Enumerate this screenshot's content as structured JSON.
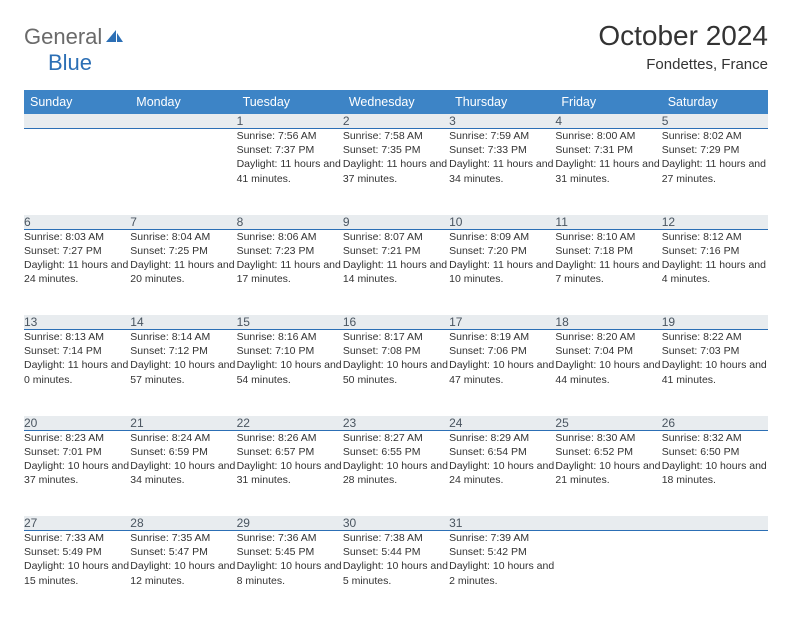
{
  "logo": {
    "text1": "General",
    "text2": "Blue"
  },
  "title": "October 2024",
  "location": "Fondettes, France",
  "colors": {
    "header_bg": "#3d84c6",
    "accent": "#2c6fb5",
    "daynum_bg": "#e8ecef",
    "text": "#333333"
  },
  "dayHeaders": [
    "Sunday",
    "Monday",
    "Tuesday",
    "Wednesday",
    "Thursday",
    "Friday",
    "Saturday"
  ],
  "weeks": [
    [
      null,
      null,
      {
        "n": "1",
        "sr": "7:56 AM",
        "ss": "7:37 PM",
        "dl": "11 hours and 41 minutes."
      },
      {
        "n": "2",
        "sr": "7:58 AM",
        "ss": "7:35 PM",
        "dl": "11 hours and 37 minutes."
      },
      {
        "n": "3",
        "sr": "7:59 AM",
        "ss": "7:33 PM",
        "dl": "11 hours and 34 minutes."
      },
      {
        "n": "4",
        "sr": "8:00 AM",
        "ss": "7:31 PM",
        "dl": "11 hours and 31 minutes."
      },
      {
        "n": "5",
        "sr": "8:02 AM",
        "ss": "7:29 PM",
        "dl": "11 hours and 27 minutes."
      }
    ],
    [
      {
        "n": "6",
        "sr": "8:03 AM",
        "ss": "7:27 PM",
        "dl": "11 hours and 24 minutes."
      },
      {
        "n": "7",
        "sr": "8:04 AM",
        "ss": "7:25 PM",
        "dl": "11 hours and 20 minutes."
      },
      {
        "n": "8",
        "sr": "8:06 AM",
        "ss": "7:23 PM",
        "dl": "11 hours and 17 minutes."
      },
      {
        "n": "9",
        "sr": "8:07 AM",
        "ss": "7:21 PM",
        "dl": "11 hours and 14 minutes."
      },
      {
        "n": "10",
        "sr": "8:09 AM",
        "ss": "7:20 PM",
        "dl": "11 hours and 10 minutes."
      },
      {
        "n": "11",
        "sr": "8:10 AM",
        "ss": "7:18 PM",
        "dl": "11 hours and 7 minutes."
      },
      {
        "n": "12",
        "sr": "8:12 AM",
        "ss": "7:16 PM",
        "dl": "11 hours and 4 minutes."
      }
    ],
    [
      {
        "n": "13",
        "sr": "8:13 AM",
        "ss": "7:14 PM",
        "dl": "11 hours and 0 minutes."
      },
      {
        "n": "14",
        "sr": "8:14 AM",
        "ss": "7:12 PM",
        "dl": "10 hours and 57 minutes."
      },
      {
        "n": "15",
        "sr": "8:16 AM",
        "ss": "7:10 PM",
        "dl": "10 hours and 54 minutes."
      },
      {
        "n": "16",
        "sr": "8:17 AM",
        "ss": "7:08 PM",
        "dl": "10 hours and 50 minutes."
      },
      {
        "n": "17",
        "sr": "8:19 AM",
        "ss": "7:06 PM",
        "dl": "10 hours and 47 minutes."
      },
      {
        "n": "18",
        "sr": "8:20 AM",
        "ss": "7:04 PM",
        "dl": "10 hours and 44 minutes."
      },
      {
        "n": "19",
        "sr": "8:22 AM",
        "ss": "7:03 PM",
        "dl": "10 hours and 41 minutes."
      }
    ],
    [
      {
        "n": "20",
        "sr": "8:23 AM",
        "ss": "7:01 PM",
        "dl": "10 hours and 37 minutes."
      },
      {
        "n": "21",
        "sr": "8:24 AM",
        "ss": "6:59 PM",
        "dl": "10 hours and 34 minutes."
      },
      {
        "n": "22",
        "sr": "8:26 AM",
        "ss": "6:57 PM",
        "dl": "10 hours and 31 minutes."
      },
      {
        "n": "23",
        "sr": "8:27 AM",
        "ss": "6:55 PM",
        "dl": "10 hours and 28 minutes."
      },
      {
        "n": "24",
        "sr": "8:29 AM",
        "ss": "6:54 PM",
        "dl": "10 hours and 24 minutes."
      },
      {
        "n": "25",
        "sr": "8:30 AM",
        "ss": "6:52 PM",
        "dl": "10 hours and 21 minutes."
      },
      {
        "n": "26",
        "sr": "8:32 AM",
        "ss": "6:50 PM",
        "dl": "10 hours and 18 minutes."
      }
    ],
    [
      {
        "n": "27",
        "sr": "7:33 AM",
        "ss": "5:49 PM",
        "dl": "10 hours and 15 minutes."
      },
      {
        "n": "28",
        "sr": "7:35 AM",
        "ss": "5:47 PM",
        "dl": "10 hours and 12 minutes."
      },
      {
        "n": "29",
        "sr": "7:36 AM",
        "ss": "5:45 PM",
        "dl": "10 hours and 8 minutes."
      },
      {
        "n": "30",
        "sr": "7:38 AM",
        "ss": "5:44 PM",
        "dl": "10 hours and 5 minutes."
      },
      {
        "n": "31",
        "sr": "7:39 AM",
        "ss": "5:42 PM",
        "dl": "10 hours and 2 minutes."
      },
      null,
      null
    ]
  ],
  "labels": {
    "sunrise": "Sunrise:",
    "sunset": "Sunset:",
    "daylight": "Daylight:"
  }
}
